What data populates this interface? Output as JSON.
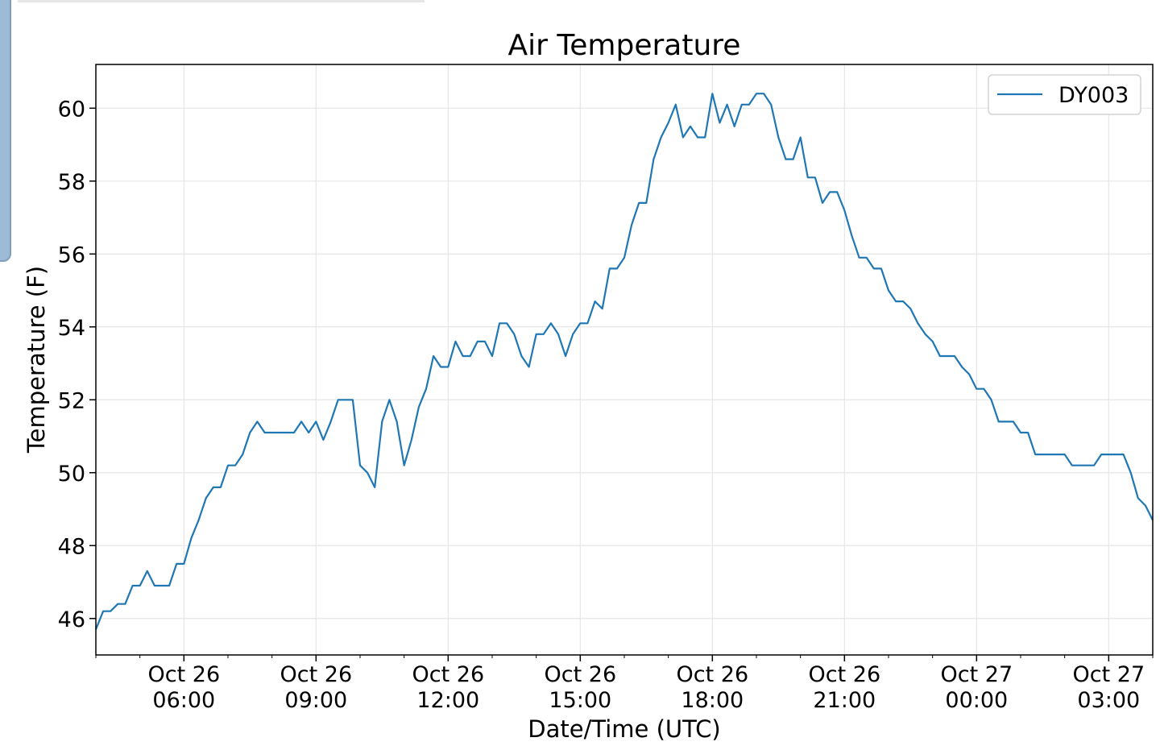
{
  "chart_data": {
    "type": "line",
    "title": "Air Temperature",
    "xlabel": "Date/Time (UTC)",
    "ylabel": "Temperature (F)",
    "xlim": [
      "2023-10-26T04:00",
      "2023-10-27T04:00"
    ],
    "ylim": [
      45,
      61.2
    ],
    "grid": true,
    "legend": "top-right",
    "x_ticks": [
      {
        "x": "2023-10-26T06:00",
        "label_line1": "Oct 26",
        "label_line2": "06:00"
      },
      {
        "x": "2023-10-26T09:00",
        "label_line1": "Oct 26",
        "label_line2": "09:00"
      },
      {
        "x": "2023-10-26T12:00",
        "label_line1": "Oct 26",
        "label_line2": "12:00"
      },
      {
        "x": "2023-10-26T15:00",
        "label_line1": "Oct 26",
        "label_line2": "15:00"
      },
      {
        "x": "2023-10-26T18:00",
        "label_line1": "Oct 26",
        "label_line2": "18:00"
      },
      {
        "x": "2023-10-26T21:00",
        "label_line1": "Oct 26",
        "label_line2": "21:00"
      },
      {
        "x": "2023-10-27T00:00",
        "label_line1": "Oct 27",
        "label_line2": "00:00"
      },
      {
        "x": "2023-10-27T03:00",
        "label_line1": "Oct 27",
        "label_line2": "03:00"
      }
    ],
    "y_ticks": [
      46,
      48,
      50,
      52,
      54,
      56,
      58,
      60
    ],
    "series": [
      {
        "name": "DY003",
        "color": "#1f77b4",
        "x": [
          "2023-10-26T04:00",
          "2023-10-26T04:10",
          "2023-10-26T04:20",
          "2023-10-26T04:30",
          "2023-10-26T04:40",
          "2023-10-26T04:50",
          "2023-10-26T05:00",
          "2023-10-26T05:10",
          "2023-10-26T05:20",
          "2023-10-26T05:30",
          "2023-10-26T05:40",
          "2023-10-26T05:50",
          "2023-10-26T06:00",
          "2023-10-26T06:10",
          "2023-10-26T06:20",
          "2023-10-26T06:30",
          "2023-10-26T06:40",
          "2023-10-26T06:50",
          "2023-10-26T07:00",
          "2023-10-26T07:10",
          "2023-10-26T07:20",
          "2023-10-26T07:30",
          "2023-10-26T07:40",
          "2023-10-26T07:50",
          "2023-10-26T08:00",
          "2023-10-26T08:10",
          "2023-10-26T08:20",
          "2023-10-26T08:30",
          "2023-10-26T08:40",
          "2023-10-26T08:50",
          "2023-10-26T09:00",
          "2023-10-26T09:10",
          "2023-10-26T09:20",
          "2023-10-26T09:30",
          "2023-10-26T09:40",
          "2023-10-26T09:50",
          "2023-10-26T10:00",
          "2023-10-26T10:10",
          "2023-10-26T10:20",
          "2023-10-26T10:30",
          "2023-10-26T10:40",
          "2023-10-26T10:50",
          "2023-10-26T11:00",
          "2023-10-26T11:10",
          "2023-10-26T11:20",
          "2023-10-26T11:30",
          "2023-10-26T11:40",
          "2023-10-26T11:50",
          "2023-10-26T12:00",
          "2023-10-26T12:10",
          "2023-10-26T12:20",
          "2023-10-26T12:30",
          "2023-10-26T12:40",
          "2023-10-26T12:50",
          "2023-10-26T13:00",
          "2023-10-26T13:10",
          "2023-10-26T13:20",
          "2023-10-26T13:30",
          "2023-10-26T13:40",
          "2023-10-26T13:50",
          "2023-10-26T14:00",
          "2023-10-26T14:10",
          "2023-10-26T14:20",
          "2023-10-26T14:30",
          "2023-10-26T14:40",
          "2023-10-26T14:50",
          "2023-10-26T15:00",
          "2023-10-26T15:10",
          "2023-10-26T15:20",
          "2023-10-26T15:30",
          "2023-10-26T15:40",
          "2023-10-26T15:50",
          "2023-10-26T16:00",
          "2023-10-26T16:10",
          "2023-10-26T16:20",
          "2023-10-26T16:30",
          "2023-10-26T16:40",
          "2023-10-26T16:50",
          "2023-10-26T17:00",
          "2023-10-26T17:10",
          "2023-10-26T17:20",
          "2023-10-26T17:30",
          "2023-10-26T17:40",
          "2023-10-26T17:50",
          "2023-10-26T18:00",
          "2023-10-26T18:10",
          "2023-10-26T18:20",
          "2023-10-26T18:30",
          "2023-10-26T18:40",
          "2023-10-26T18:50",
          "2023-10-26T19:00",
          "2023-10-26T19:10",
          "2023-10-26T19:20",
          "2023-10-26T19:30",
          "2023-10-26T19:40",
          "2023-10-26T19:50",
          "2023-10-26T20:00",
          "2023-10-26T20:10",
          "2023-10-26T20:20",
          "2023-10-26T20:30",
          "2023-10-26T20:40",
          "2023-10-26T20:50",
          "2023-10-26T21:00",
          "2023-10-26T21:10",
          "2023-10-26T21:20",
          "2023-10-26T21:30",
          "2023-10-26T21:40",
          "2023-10-26T21:50",
          "2023-10-26T22:00",
          "2023-10-26T22:10",
          "2023-10-26T22:20",
          "2023-10-26T22:30",
          "2023-10-26T22:40",
          "2023-10-26T22:50",
          "2023-10-26T23:00",
          "2023-10-26T23:10",
          "2023-10-26T23:20",
          "2023-10-26T23:30",
          "2023-10-26T23:40",
          "2023-10-26T23:50",
          "2023-10-27T00:00",
          "2023-10-27T00:10",
          "2023-10-27T00:20",
          "2023-10-27T00:30",
          "2023-10-27T00:40",
          "2023-10-27T00:50",
          "2023-10-27T01:00",
          "2023-10-27T01:10",
          "2023-10-27T01:20",
          "2023-10-27T01:30",
          "2023-10-27T01:40",
          "2023-10-27T01:50",
          "2023-10-27T02:00",
          "2023-10-27T02:10",
          "2023-10-27T02:20",
          "2023-10-27T02:30",
          "2023-10-27T02:40",
          "2023-10-27T02:50",
          "2023-10-27T03:00",
          "2023-10-27T03:10",
          "2023-10-27T03:20",
          "2023-10-27T03:30",
          "2023-10-27T03:40",
          "2023-10-27T03:50",
          "2023-10-27T04:00"
        ],
        "y": [
          45.7,
          46.2,
          46.2,
          46.4,
          46.4,
          46.9,
          46.9,
          47.3,
          46.9,
          46.9,
          46.9,
          47.5,
          47.5,
          48.2,
          48.7,
          49.3,
          49.6,
          49.6,
          50.2,
          50.2,
          50.5,
          51.1,
          51.4,
          51.1,
          51.1,
          51.1,
          51.1,
          51.1,
          51.4,
          51.1,
          51.4,
          50.9,
          51.4,
          52.0,
          52.0,
          52.0,
          50.2,
          50.0,
          49.6,
          51.4,
          52.0,
          51.4,
          50.2,
          50.9,
          51.8,
          52.3,
          53.2,
          52.9,
          52.9,
          53.6,
          53.2,
          53.2,
          53.6,
          53.6,
          53.2,
          54.1,
          54.1,
          53.8,
          53.2,
          52.9,
          53.8,
          53.8,
          54.1,
          53.8,
          53.2,
          53.8,
          54.1,
          54.1,
          54.7,
          54.5,
          55.6,
          55.6,
          55.9,
          56.8,
          57.4,
          57.4,
          58.6,
          59.2,
          59.6,
          60.1,
          59.2,
          59.5,
          59.2,
          59.2,
          60.4,
          59.6,
          60.1,
          59.5,
          60.1,
          60.1,
          60.4,
          60.4,
          60.1,
          59.2,
          58.6,
          58.6,
          59.2,
          58.1,
          58.1,
          57.4,
          57.7,
          57.7,
          57.2,
          56.5,
          55.9,
          55.9,
          55.6,
          55.6,
          55.0,
          54.7,
          54.7,
          54.5,
          54.1,
          53.8,
          53.6,
          53.2,
          53.2,
          53.2,
          52.9,
          52.7,
          52.3,
          52.3,
          52.0,
          51.4,
          51.4,
          51.4,
          51.1,
          51.1,
          50.5,
          50.5,
          50.5,
          50.5,
          50.5,
          50.2,
          50.2,
          50.2,
          50.2,
          50.5,
          50.5,
          50.5,
          50.5,
          50.0,
          49.3,
          49.1,
          48.7
        ]
      }
    ]
  }
}
